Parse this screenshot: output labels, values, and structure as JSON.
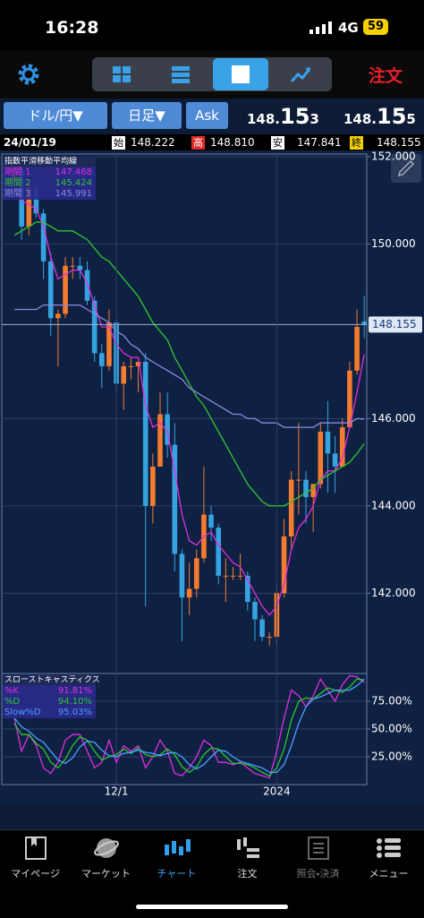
{
  "status_bar": {
    "time": "16:28",
    "network": "4G",
    "battery": "59"
  },
  "toolbar": {
    "order": "注文"
  },
  "selector": {
    "pair": "ドル/円▼",
    "interval": "日足▼",
    "side": "Ask",
    "bid": {
      "main": "148.",
      "big": "15",
      "small": "3"
    },
    "ask": {
      "main": "148.",
      "big": "15",
      "small": "5"
    }
  },
  "ohlc_bar": {
    "date": "24/01/19",
    "items": [
      {
        "label": "始",
        "value": "148.222"
      },
      {
        "label": "高",
        "value": "148.810"
      },
      {
        "label": "安",
        "value": "147.841"
      },
      {
        "label": "終",
        "value": "148.155"
      }
    ]
  },
  "chart_data": [
    {
      "type": "candlestick",
      "title": "指数平滑移動平均線",
      "open": [
        151.5,
        151.7,
        150.4,
        151.3,
        150.7,
        149.6,
        148.3,
        148.4,
        149.5,
        149.5,
        149.4,
        148.7,
        147.5,
        147.2,
        148.2,
        146.8,
        147.2,
        147.2,
        147.3,
        144.0,
        144.9,
        146.1,
        145.4,
        142.9,
        141.9,
        142.1,
        142.8,
        143.8,
        143.5,
        142.4,
        142.4,
        142.4,
        142.4,
        141.8,
        141.4,
        141.0,
        141.0,
        142.0,
        143.3,
        144.6,
        144.6,
        144.2,
        144.5,
        145.7,
        145.2,
        144.9,
        145.8,
        147.1,
        148.222
      ],
      "high": [
        151.9,
        151.9,
        151.4,
        151.4,
        150.8,
        149.8,
        148.5,
        149.7,
        149.7,
        149.7,
        149.6,
        148.8,
        147.7,
        148.5,
        148.3,
        147.3,
        147.4,
        147.3,
        147.5,
        145.2,
        146.6,
        146.6,
        145.9,
        143.0,
        142.7,
        143.0,
        144.9,
        144.0,
        143.6,
        142.8,
        142.6,
        142.9,
        142.5,
        141.9,
        141.5,
        141.1,
        142.2,
        143.7,
        144.8,
        145.9,
        144.8,
        144.5,
        145.9,
        146.4,
        145.6,
        146.0,
        147.3,
        148.5,
        148.81
      ],
      "low": [
        151.4,
        150.1,
        150.2,
        150.6,
        149.2,
        147.9,
        147.2,
        148.3,
        149.2,
        149.2,
        148.6,
        147.3,
        146.7,
        147.1,
        146.6,
        146.2,
        146.9,
        146.6,
        141.7,
        143.6,
        144.9,
        145.1,
        142.5,
        140.9,
        141.5,
        141.9,
        142.7,
        143.2,
        142.2,
        141.8,
        142.3,
        142.3,
        141.6,
        140.9,
        140.9,
        140.8,
        140.8,
        141.9,
        143.0,
        143.8,
        143.6,
        143.4,
        144.4,
        144.3,
        144.3,
        144.9,
        145.8,
        147.0,
        147.841
      ],
      "close": [
        151.7,
        150.4,
        151.3,
        150.7,
        149.6,
        148.3,
        148.4,
        149.5,
        149.5,
        149.4,
        148.7,
        147.5,
        147.2,
        148.2,
        146.8,
        147.2,
        147.2,
        147.3,
        144.0,
        144.9,
        146.1,
        145.4,
        142.9,
        141.9,
        142.1,
        142.8,
        143.8,
        143.5,
        142.4,
        142.4,
        142.4,
        142.4,
        141.8,
        141.4,
        141.0,
        141.0,
        142.0,
        143.3,
        144.6,
        144.6,
        144.2,
        144.5,
        145.7,
        145.2,
        144.9,
        145.8,
        147.1,
        148.1,
        148.155
      ],
      "up_color": "#f47b2f",
      "down_color": "#36a3e0",
      "ylim": [
        140.16,
        152.06
      ],
      "yticks": [
        {
          "value": 142,
          "label": "142.000"
        },
        {
          "value": 144,
          "label": "144.000"
        },
        {
          "value": 146,
          "label": "146.000"
        },
        {
          "value": 150,
          "label": "150.000"
        },
        {
          "value": 152,
          "label": "152.000"
        }
      ],
      "grid": true,
      "last_price": {
        "value": 148.155,
        "label": "148.155"
      },
      "series": [
        {
          "name": "期間 1",
          "color": "#e02ee0",
          "legend_value": "147.468",
          "values": [
            151.3,
            151.0,
            150.9,
            150.8,
            150.4,
            149.7,
            149.2,
            149.3,
            149.4,
            149.4,
            149.1,
            148.6,
            148.1,
            148.1,
            147.7,
            147.5,
            147.4,
            147.4,
            146.3,
            145.8,
            145.9,
            145.7,
            144.8,
            143.8,
            143.2,
            143.1,
            143.3,
            143.4,
            143.1,
            142.9,
            142.7,
            142.6,
            142.3,
            142.0,
            141.7,
            141.5,
            141.7,
            142.2,
            143.0,
            143.5,
            143.7,
            144.0,
            144.6,
            144.8,
            144.8,
            145.1,
            145.8,
            146.6,
            147.468
          ]
        },
        {
          "name": "期間 2",
          "color": "#2ec72e",
          "legend_value": "145.424",
          "values": [
            150.2,
            150.3,
            150.4,
            150.5,
            150.5,
            150.4,
            150.3,
            150.3,
            150.3,
            150.2,
            150.1,
            149.9,
            149.7,
            149.6,
            149.4,
            149.2,
            149.0,
            148.8,
            148.5,
            148.2,
            148.0,
            147.8,
            147.4,
            147.1,
            146.8,
            146.5,
            146.3,
            146.0,
            145.7,
            145.4,
            145.1,
            144.8,
            144.5,
            144.3,
            144.1,
            144.0,
            144.0,
            144.0,
            144.1,
            144.2,
            144.3,
            144.4,
            144.6,
            144.7,
            144.8,
            144.9,
            145.0,
            145.2,
            145.424
          ]
        },
        {
          "name": "期間 3",
          "color": "#8a8ae0",
          "legend_value": "145.991",
          "values": [
            148.5,
            148.5,
            148.5,
            148.5,
            148.6,
            148.6,
            148.6,
            148.6,
            148.6,
            148.6,
            148.5,
            148.4,
            148.3,
            148.2,
            148.0,
            147.9,
            147.7,
            147.6,
            147.4,
            147.3,
            147.2,
            147.1,
            147.0,
            146.9,
            146.7,
            146.6,
            146.5,
            146.4,
            146.3,
            146.2,
            146.1,
            146.1,
            146.0,
            146.0,
            145.9,
            145.9,
            145.9,
            145.8,
            145.8,
            145.8,
            145.8,
            145.8,
            145.9,
            145.9,
            145.9,
            145.9,
            145.9,
            146.0,
            145.991
          ]
        }
      ]
    },
    {
      "type": "line",
      "title": "スローストキャスティクス",
      "categories": [
        null,
        null,
        null,
        null,
        null,
        null,
        null,
        null,
        null,
        null,
        null,
        null,
        null,
        null,
        "12/1",
        null,
        null,
        null,
        null,
        null,
        null,
        null,
        null,
        null,
        null,
        null,
        null,
        null,
        null,
        null,
        null,
        null,
        null,
        null,
        null,
        null,
        "2024",
        null,
        null,
        null,
        null,
        null,
        null,
        null,
        null,
        null,
        null,
        null,
        null
      ],
      "ylim": [
        0,
        100
      ],
      "yticks": [
        {
          "value": 25,
          "label": "25.00%"
        },
        {
          "value": 50,
          "label": "50.00%"
        },
        {
          "value": 75,
          "label": "75.00%"
        }
      ],
      "series": [
        {
          "name": "%K",
          "color": "#e02ee0",
          "legend_value": "91.81%",
          "values": [
            60,
            30,
            45,
            35,
            15,
            10,
            20,
            40,
            45,
            45,
            30,
            15,
            20,
            40,
            20,
            35,
            30,
            35,
            15,
            25,
            40,
            30,
            10,
            8,
            15,
            25,
            40,
            35,
            20,
            20,
            18,
            20,
            15,
            10,
            8,
            6,
            30,
            60,
            85,
            80,
            70,
            80,
            95,
            85,
            75,
            90,
            98,
            97,
            91.81
          ]
        },
        {
          "name": "%D",
          "color": "#2ec72e",
          "legend_value": "94.10%",
          "values": [
            55,
            45,
            45,
            37,
            32,
            20,
            15,
            23,
            35,
            43,
            40,
            30,
            22,
            25,
            27,
            32,
            28,
            33,
            27,
            25,
            27,
            32,
            27,
            16,
            11,
            16,
            27,
            33,
            32,
            25,
            19,
            19,
            18,
            15,
            11,
            8,
            15,
            32,
            58,
            75,
            78,
            77,
            82,
            87,
            85,
            83,
            88,
            95,
            94.1
          ]
        },
        {
          "name": "Slow%D",
          "color": "#4aa0ff",
          "legend_value": "95.03%",
          "values": [
            60,
            52,
            48,
            42,
            38,
            30,
            22,
            19,
            24,
            34,
            39,
            38,
            31,
            26,
            25,
            28,
            29,
            31,
            29,
            28,
            26,
            28,
            29,
            25,
            18,
            14,
            18,
            25,
            31,
            30,
            25,
            21,
            19,
            17,
            15,
            11,
            11,
            18,
            35,
            55,
            70,
            77,
            79,
            82,
            85,
            85,
            85,
            89,
            95.03
          ]
        }
      ]
    }
  ],
  "nav": [
    {
      "label": "マイページ"
    },
    {
      "label": "マーケット"
    },
    {
      "label": "チャート"
    },
    {
      "label": "注文"
    },
    {
      "label": "照会・決済"
    },
    {
      "label": "メニュー"
    }
  ]
}
